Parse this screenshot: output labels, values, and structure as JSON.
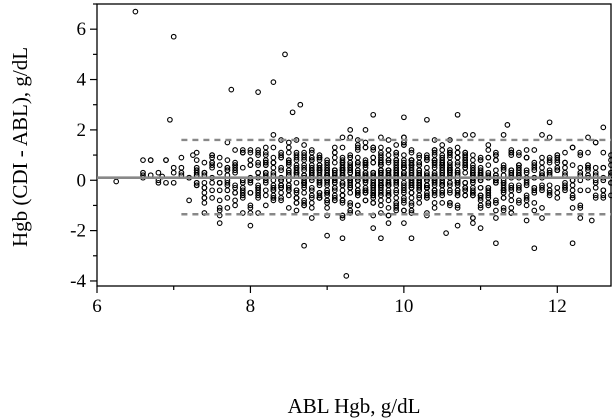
{
  "chart_data": {
    "type": "scatter",
    "title": "",
    "xlabel": "ABL Hgb, g/dL",
    "ylabel": "Hgb (CDI - ABL), g/dL",
    "xlim": [
      6,
      12.7
    ],
    "ylim": [
      -4.2,
      7.0
    ],
    "x_ticks": [
      6,
      8,
      10,
      12
    ],
    "y_ticks": [
      -4,
      -2,
      0,
      2,
      4,
      6
    ],
    "grid": false,
    "reference_lines": [
      {
        "kind": "mean",
        "y": 0.1,
        "style": "solid",
        "color": "#888888",
        "x_range": [
          6,
          12.7
        ]
      },
      {
        "kind": "upper_limit",
        "y": 1.6,
        "style": "dashed",
        "color": "#888888",
        "x_range": [
          7.1,
          12.7
        ]
      },
      {
        "kind": "lower_limit",
        "y": -1.35,
        "style": "dashed",
        "color": "#888888",
        "x_range": [
          7.1,
          12.7
        ]
      }
    ],
    "points_outliers": [
      {
        "x": 6.25,
        "y": -0.05
      },
      {
        "x": 6.5,
        "y": 6.7
      },
      {
        "x": 6.6,
        "y": 0.8
      },
      {
        "x": 6.85,
        "y": 0.15
      },
      {
        "x": 6.95,
        "y": 2.4
      },
      {
        "x": 7.0,
        "y": 5.7
      },
      {
        "x": 7.1,
        "y": 0.9
      },
      {
        "x": 7.25,
        "y": 1.0
      },
      {
        "x": 7.4,
        "y": -0.3
      },
      {
        "x": 7.75,
        "y": 3.6
      },
      {
        "x": 8.1,
        "y": 3.5
      },
      {
        "x": 8.3,
        "y": 3.9
      },
      {
        "x": 8.45,
        "y": 5.0
      },
      {
        "x": 8.65,
        "y": 3.0
      },
      {
        "x": 8.55,
        "y": 2.7
      },
      {
        "x": 8.7,
        "y": -2.6
      },
      {
        "x": 9.25,
        "y": -3.8
      },
      {
        "x": 9.6,
        "y": 2.6
      },
      {
        "x": 10.0,
        "y": 2.5
      },
      {
        "x": 10.7,
        "y": 2.6
      },
      {
        "x": 11.35,
        "y": 2.2
      },
      {
        "x": 11.2,
        "y": -2.5
      },
      {
        "x": 12.2,
        "y": -2.5
      },
      {
        "x": 12.6,
        "y": 2.1
      },
      {
        "x": 12.45,
        "y": -1.6
      },
      {
        "x": 7.6,
        "y": -1.4
      },
      {
        "x": 8.0,
        "y": -1.8
      },
      {
        "x": 9.0,
        "y": -2.2
      },
      {
        "x": 10.1,
        "y": -2.3
      },
      {
        "x": 10.55,
        "y": -2.1
      }
    ],
    "cluster": {
      "description_of_density": "dense band of approximately 1500 points",
      "x_range": [
        7.3,
        12.7
      ],
      "center_y": 0.1,
      "spread_y": 0.7
    }
  }
}
